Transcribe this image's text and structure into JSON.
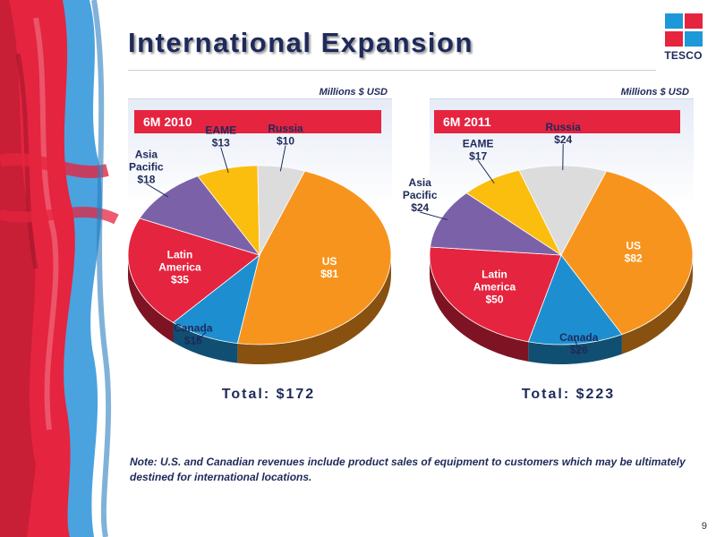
{
  "slide": {
    "title": "International Expansion",
    "page_number": "9",
    "footnote": "Note: U.S. and Canadian revenues include product sales of equipment to customers which may be ultimately destined for international locations."
  },
  "logo": {
    "text": "TESCO",
    "colors": [
      "#1d98d8",
      "#e5243f",
      "#e5243f",
      "#1d98d8"
    ]
  },
  "colors": {
    "US": "#f7941d",
    "Canada": "#1d8fd0",
    "Latin America": "#e5243f",
    "Asia Pacific": "#7b62a8",
    "EAME": "#fbbd0e",
    "Russia": "#dcdcdc",
    "period_bar": "#e5243f",
    "title": "#1e2a5a"
  },
  "chart_data": [
    {
      "type": "pie",
      "title": "6M 2010",
      "unit_label": "Millions $ USD",
      "total_label": "Total: $172",
      "slices": [
        {
          "label": "US",
          "label_lines": [
            "US",
            "$81"
          ],
          "value": 81
        },
        {
          "label": "Canada",
          "label_lines": [
            "Canada",
            "$15"
          ],
          "value": 15
        },
        {
          "label": "Latin America",
          "label_lines": [
            "Latin",
            "America",
            "$35"
          ],
          "value": 35
        },
        {
          "label": "Asia Pacific",
          "label_lines": [
            "Asia",
            "Pacific",
            "$18"
          ],
          "value": 18
        },
        {
          "label": "EAME",
          "label_lines": [
            "EAME",
            "$13"
          ],
          "value": 13
        },
        {
          "label": "Russia",
          "label_lines": [
            "Russia",
            "$10"
          ],
          "value": 10
        }
      ]
    },
    {
      "type": "pie",
      "title": "6M 2011",
      "unit_label": "Millions $ USD",
      "total_label": "Total: $223",
      "slices": [
        {
          "label": "US",
          "label_lines": [
            "US",
            "$82"
          ],
          "value": 82
        },
        {
          "label": "Canada",
          "label_lines": [
            "Canada",
            "$26"
          ],
          "value": 26
        },
        {
          "label": "Latin America",
          "label_lines": [
            "Latin",
            "America",
            "$50"
          ],
          "value": 50
        },
        {
          "label": "Asia Pacific",
          "label_lines": [
            "Asia",
            "Pacific",
            "$24"
          ],
          "value": 24
        },
        {
          "label": "EAME",
          "label_lines": [
            "EAME",
            "$17"
          ],
          "value": 17
        },
        {
          "label": "Russia",
          "label_lines": [
            "Russia",
            "$24"
          ],
          "value": 24
        }
      ]
    }
  ]
}
